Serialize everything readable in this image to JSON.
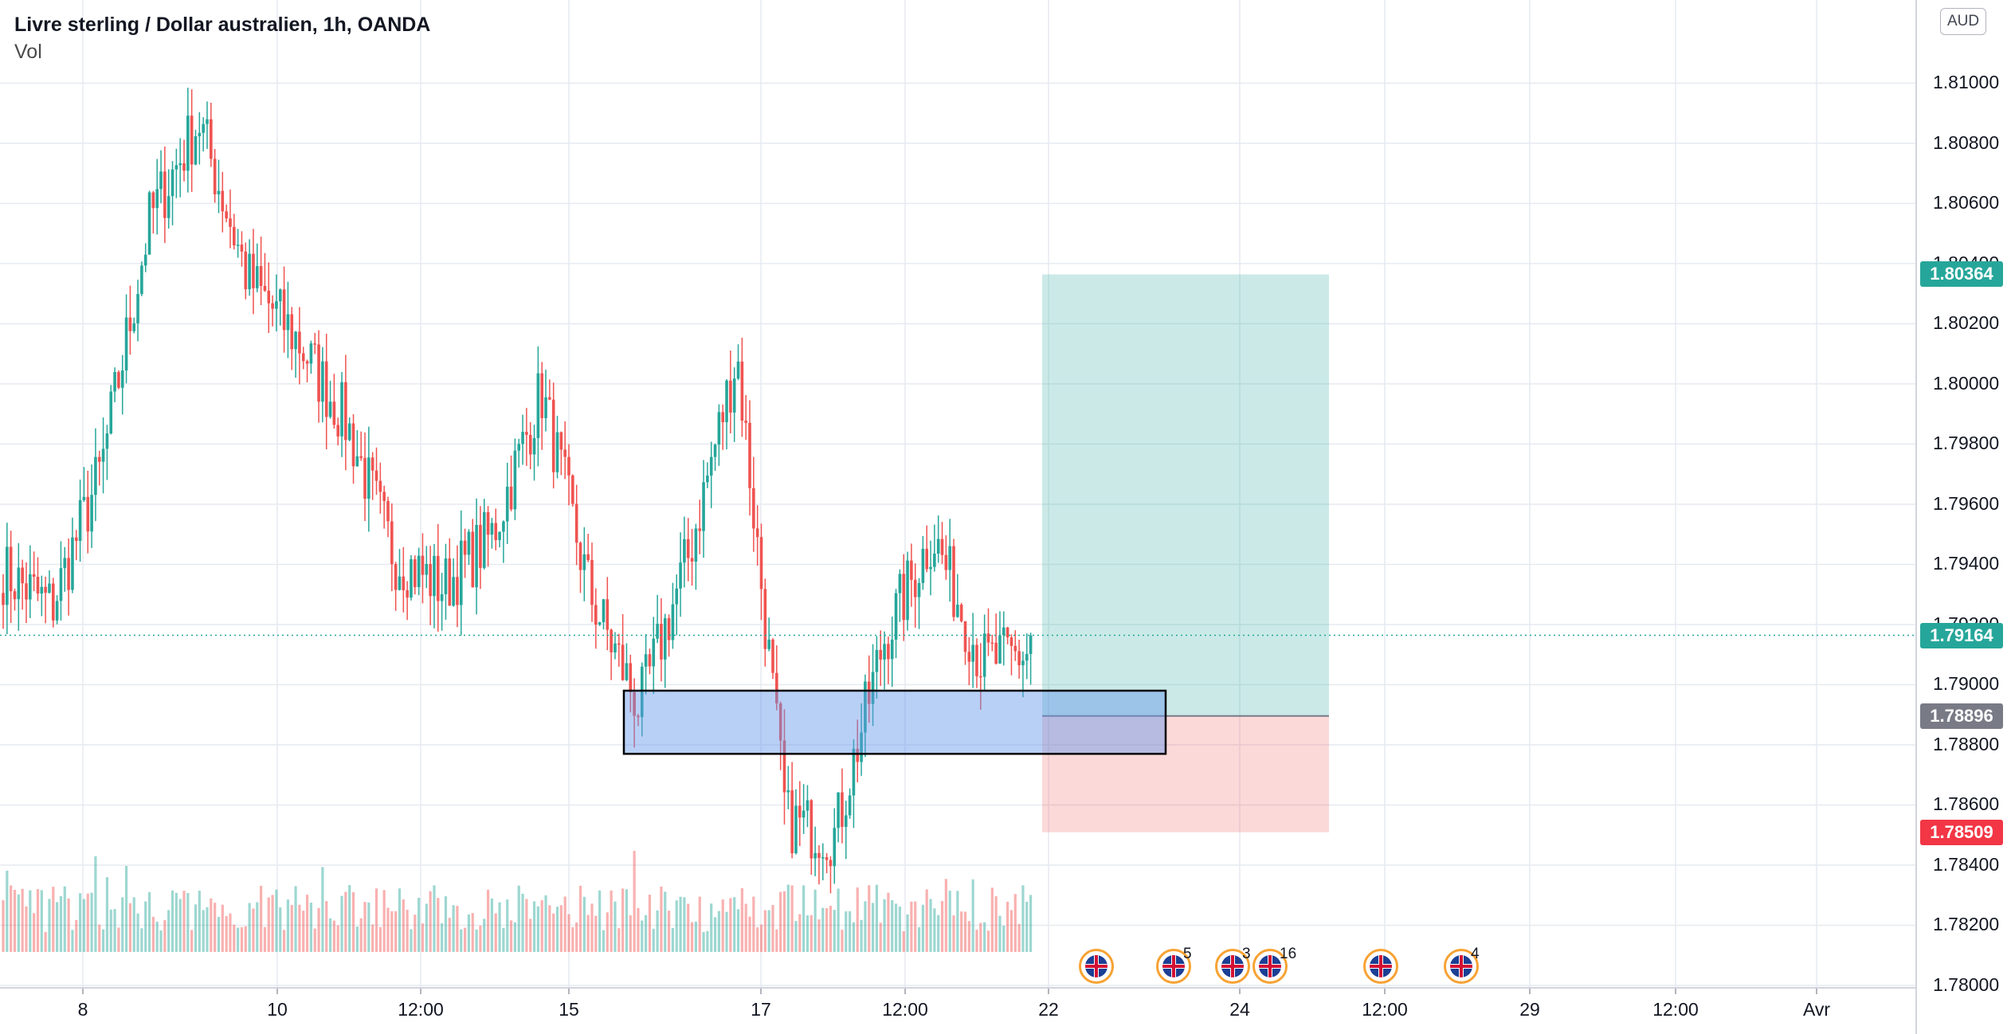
{
  "legend": {
    "symbol_title": "Livre sterling / Dollar australien, 1h, OANDA",
    "volume_label": "Vol"
  },
  "currency_button": "AUD",
  "price_axis": {
    "ticks": [
      "1.81000",
      "1.80800",
      "1.80600",
      "1.80400",
      "1.80200",
      "1.80000",
      "1.79800",
      "1.79600",
      "1.79400",
      "1.79200",
      "1.79000",
      "1.78800",
      "1.78600",
      "1.78400",
      "1.78200",
      "1.78000"
    ]
  },
  "time_axis": {
    "labels": [
      "8",
      "10",
      "12:00",
      "15",
      "17",
      "12:00",
      "22",
      "24",
      "12:00",
      "29",
      "12:00",
      "Avr"
    ]
  },
  "price_tags": {
    "take_profit": "1.80364",
    "current": "1.79164",
    "entry": "1.78896",
    "stop_loss": "1.78509"
  },
  "events": [
    {
      "count": ""
    },
    {
      "count": "5"
    },
    {
      "count": "3"
    },
    {
      "count": "16"
    },
    {
      "count": ""
    },
    {
      "count": "4"
    }
  ],
  "colors": {
    "up": "#26a69a",
    "down": "#ef5350",
    "profit_zone": "rgba(38,166,154,0.24)",
    "loss_zone": "rgba(239,83,80,0.22)",
    "support_zone": "rgba(100,150,235,0.45)",
    "current_tag": "#26a69a",
    "entry_tag": "#787b86",
    "stop_tag": "#f23645"
  },
  "chart_data": {
    "type": "candlestick",
    "symbol": "GBPAUD",
    "interval": "1h",
    "ylim": [
      1.78,
      1.8125
    ],
    "grid": true,
    "last_price": 1.79164,
    "position": {
      "entry": 1.78896,
      "take_profit": 1.80364,
      "stop_loss": 1.78509
    },
    "support_zone": [
      1.7877,
      1.7898
    ],
    "anchors": [
      [
        1.794,
        1.7935
      ],
      [
        1.7932,
        1.792
      ],
      [
        1.7975,
        1.7968
      ],
      [
        1.805,
        1.806
      ],
      [
        1.8095,
        1.808
      ],
      [
        1.804,
        1.803
      ],
      [
        1.801,
        1.802
      ],
      [
        1.7985,
        1.799
      ],
      [
        1.795,
        1.7935
      ],
      [
        1.7945,
        1.792
      ],
      [
        1.794,
        1.796
      ],
      [
        1.7995,
        1.8
      ],
      [
        1.795,
        1.791
      ],
      [
        1.789,
        1.7895
      ],
      [
        1.793,
        1.7955
      ],
      [
        1.8005,
        1.8015
      ],
      [
        1.788,
        1.783
      ],
      [
        1.782,
        1.788
      ],
      [
        1.789,
        1.794
      ],
      [
        1.7955,
        1.7945
      ],
      [
        1.792,
        1.7895
      ],
      [
        1.7905,
        1.7916
      ]
    ]
  }
}
